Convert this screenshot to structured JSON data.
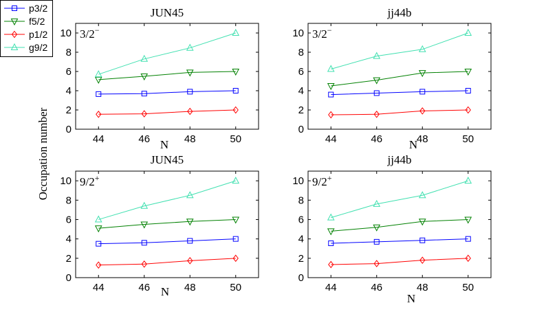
{
  "figure": {
    "ylabel": "Occupation number",
    "legend": {
      "position": "top-left",
      "entries": [
        {
          "label": "p3/2",
          "color": "#0000ff",
          "marker": "square"
        },
        {
          "label": "f5/2",
          "color": "#008000",
          "marker": "triangle-down"
        },
        {
          "label": "p1/2",
          "color": "#ff0000",
          "marker": "diamond"
        },
        {
          "label": "g9/2",
          "color": "#40e0b0",
          "marker": "triangle-up"
        }
      ]
    }
  },
  "chart_data": [
    {
      "type": "line",
      "title": "JUN45",
      "annotation": {
        "base": "3/2",
        "sup": "−"
      },
      "xlabel": "N",
      "ylabel": "Occupation number",
      "x": [
        44,
        46,
        48,
        50
      ],
      "xticks": [
        "44",
        "46",
        "48",
        "50"
      ],
      "yticks": [
        "0",
        "2",
        "4",
        "6",
        "8",
        "10"
      ],
      "xlim": [
        43,
        51
      ],
      "ylim": [
        0,
        11
      ],
      "series": [
        {
          "name": "p3/2",
          "values": [
            3.65,
            3.7,
            3.9,
            4.0
          ]
        },
        {
          "name": "f5/2",
          "values": [
            5.15,
            5.5,
            5.9,
            6.0
          ]
        },
        {
          "name": "p1/2",
          "values": [
            1.55,
            1.6,
            1.85,
            2.0
          ]
        },
        {
          "name": "g9/2",
          "values": [
            5.7,
            7.3,
            8.45,
            10.0
          ]
        }
      ]
    },
    {
      "type": "line",
      "title": "jj44b",
      "annotation": {
        "base": "3/2",
        "sup": "−"
      },
      "xlabel": "N",
      "ylabel": "",
      "x": [
        44,
        46,
        48,
        50
      ],
      "xticks": [
        "44",
        "46",
        "48",
        "50"
      ],
      "yticks": [
        "0",
        "2",
        "4",
        "6",
        "8",
        "10"
      ],
      "xlim": [
        43,
        51
      ],
      "ylim": [
        0,
        11
      ],
      "series": [
        {
          "name": "p3/2",
          "values": [
            3.6,
            3.75,
            3.9,
            4.0
          ]
        },
        {
          "name": "f5/2",
          "values": [
            4.5,
            5.1,
            5.85,
            6.0
          ]
        },
        {
          "name": "p1/2",
          "values": [
            1.5,
            1.55,
            1.9,
            2.0
          ]
        },
        {
          "name": "g9/2",
          "values": [
            6.25,
            7.6,
            8.3,
            10.0
          ]
        }
      ]
    },
    {
      "type": "line",
      "title": "JUN45",
      "annotation": {
        "base": "9/2",
        "sup": "+"
      },
      "xlabel": "N",
      "ylabel": "",
      "x": [
        44,
        46,
        48,
        50
      ],
      "xticks": [
        "44",
        "46",
        "48",
        "50"
      ],
      "yticks": [
        "0",
        "2",
        "4",
        "6",
        "8",
        "10"
      ],
      "xlim": [
        43,
        51
      ],
      "ylim": [
        0,
        11
      ],
      "series": [
        {
          "name": "p3/2",
          "values": [
            3.5,
            3.6,
            3.8,
            4.0
          ]
        },
        {
          "name": "f5/2",
          "values": [
            5.1,
            5.5,
            5.8,
            6.0
          ]
        },
        {
          "name": "p1/2",
          "values": [
            1.3,
            1.4,
            1.75,
            2.0
          ]
        },
        {
          "name": "g9/2",
          "values": [
            6.0,
            7.4,
            8.5,
            10.0
          ]
        }
      ]
    },
    {
      "type": "line",
      "title": "jj44b",
      "annotation": {
        "base": "9/2",
        "sup": "+"
      },
      "xlabel": "N",
      "ylabel": "",
      "x": [
        44,
        46,
        48,
        50
      ],
      "xticks": [
        "44",
        "46",
        "48",
        "50"
      ],
      "yticks": [
        "0",
        "2",
        "4",
        "6",
        "8",
        "10"
      ],
      "xlim": [
        43,
        51
      ],
      "ylim": [
        0,
        11
      ],
      "series": [
        {
          "name": "p3/2",
          "values": [
            3.55,
            3.7,
            3.85,
            4.0
          ]
        },
        {
          "name": "f5/2",
          "values": [
            4.8,
            5.2,
            5.8,
            6.0
          ]
        },
        {
          "name": "p1/2",
          "values": [
            1.35,
            1.45,
            1.8,
            2.0
          ]
        },
        {
          "name": "g9/2",
          "values": [
            6.2,
            7.6,
            8.5,
            10.0
          ]
        }
      ]
    }
  ]
}
